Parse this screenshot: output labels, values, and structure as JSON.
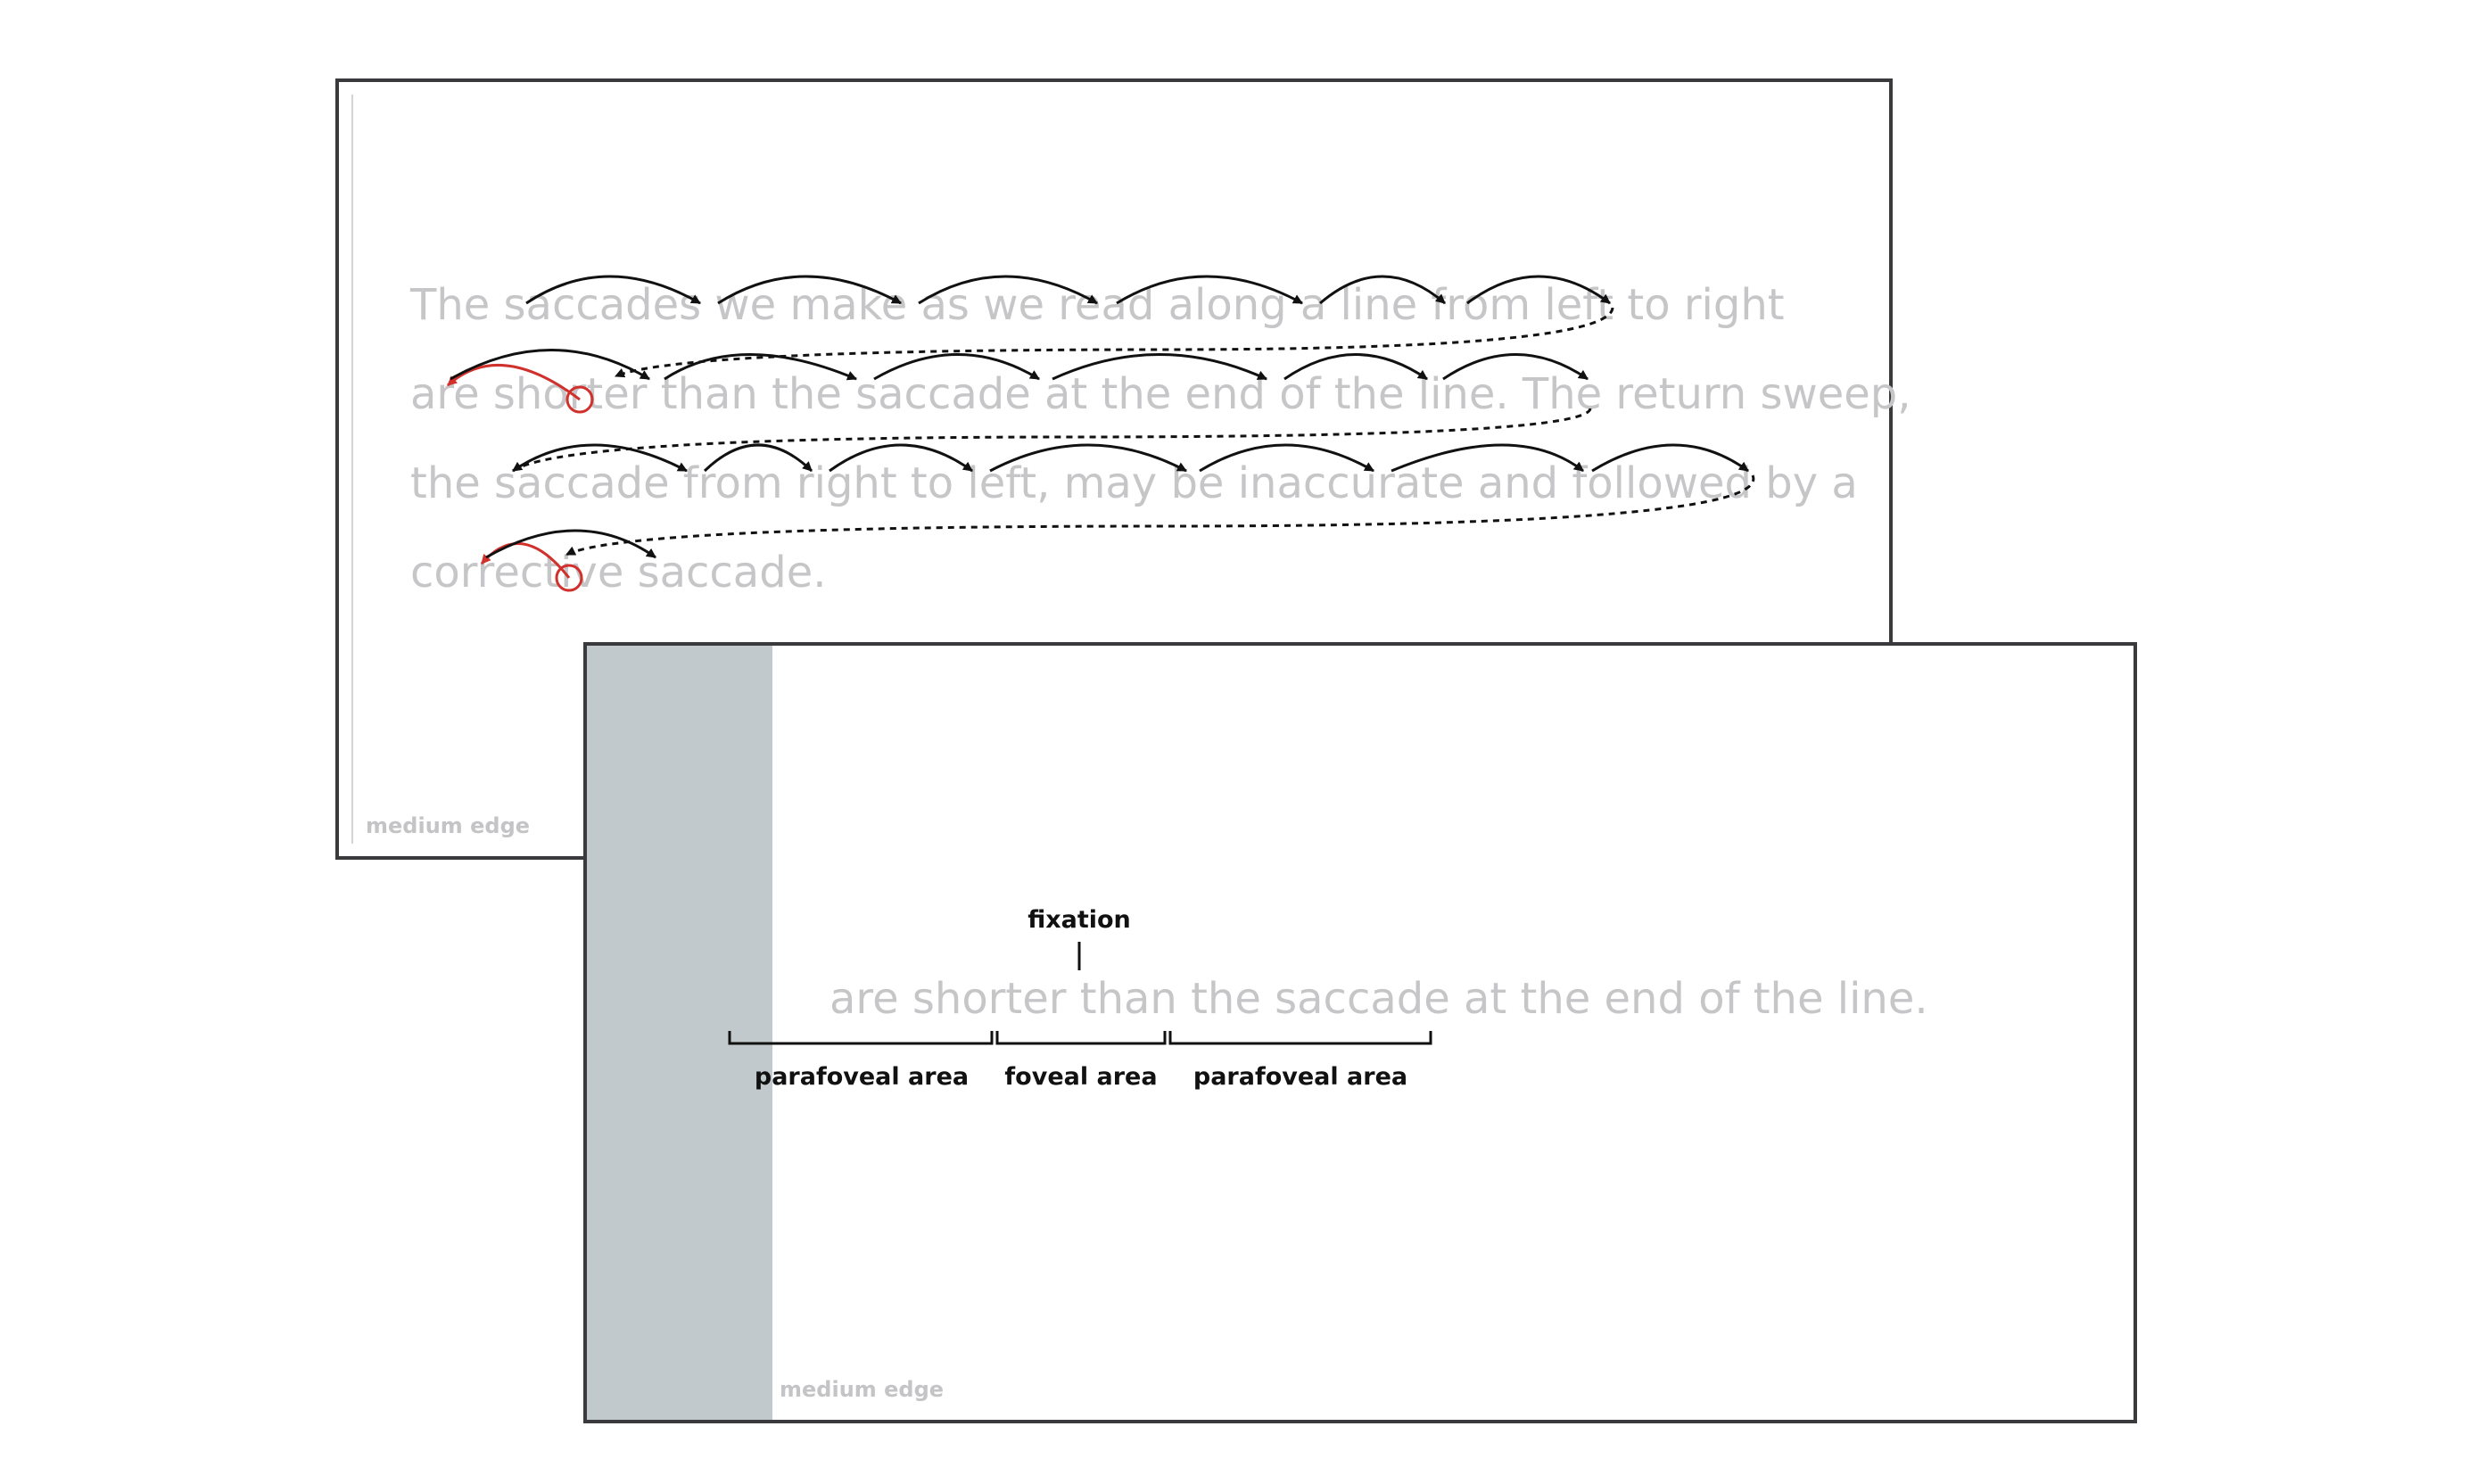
{
  "top_panel": {
    "lines": [
      "The saccades we make as we read along a line from left to right",
      "are shorter than the saccade at the end of the line. The return sweep,",
      "the saccade from right to left, may be inaccurate and followed by a",
      "corrective saccade."
    ],
    "edge_label": "medium edge"
  },
  "bottom_panel": {
    "sentence": "are shorter than the saccade at the end of the line.",
    "fixation_label": "fixation",
    "areas": {
      "left": "parafoveal area",
      "center": "foveal area",
      "right": "parafoveal area"
    },
    "edge_label": "medium edge"
  },
  "colors": {
    "saccade_arrow": "#111111",
    "regression_arrow": "#d0312d",
    "text_gray": "#c6c6c8",
    "margin_gray": "#c2c9cc",
    "border": "#3a3a3c"
  }
}
